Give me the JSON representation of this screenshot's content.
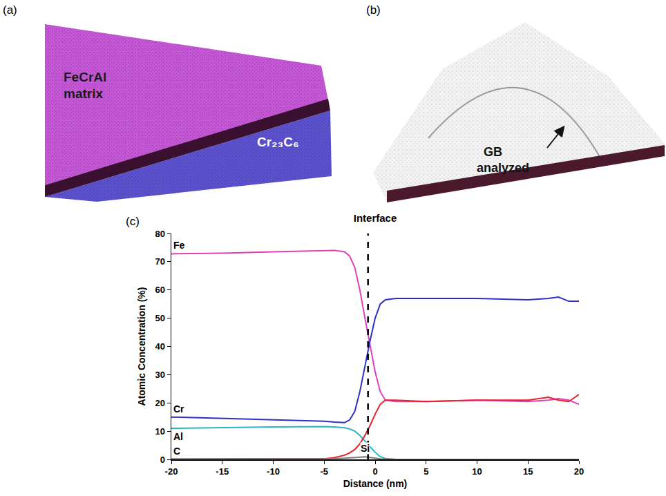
{
  "panel_a": {
    "label": "(a)",
    "matrix_label": [
      "FeCrAl",
      "matrix"
    ],
    "carbide_label": "Cr₂₃C₆"
  },
  "panel_b": {
    "label": "(b)",
    "gb_label": [
      "GB",
      "analyzed"
    ]
  },
  "chart_data": {
    "type": "line",
    "panel_label": "(c)",
    "title": "Interface",
    "x_label": "Distance (nm)",
    "y_label": "Atomic Concentration (%)",
    "x": [
      -20,
      -15,
      -10,
      -5,
      -4,
      -3,
      -2.5,
      -2,
      -1.5,
      -1,
      -0.5,
      0,
      0.5,
      1,
      2,
      5,
      10,
      15,
      17,
      18,
      19,
      20
    ],
    "series": [
      {
        "name": "Fe",
        "color": "#e040b8",
        "values": [
          72.8,
          73,
          73.5,
          74,
          74,
          73.5,
          72,
          68,
          60,
          50,
          40,
          31,
          24,
          21,
          20.5,
          20.5,
          21,
          20.5,
          21,
          21.5,
          21,
          19.5
        ]
      },
      {
        "name": "Cr",
        "color": "#2f2fc8",
        "values": [
          15,
          14.5,
          14,
          13.5,
          13.2,
          13,
          14,
          17,
          24,
          33,
          42,
          50,
          55,
          56.5,
          57,
          57,
          57,
          56.5,
          57,
          57.5,
          56,
          56
        ]
      },
      {
        "name": "Al",
        "color": "#2ab4c8",
        "values": [
          11,
          11.3,
          11.5,
          11.6,
          11.5,
          11.2,
          10.8,
          10,
          8.5,
          6.5,
          4.5,
          2.5,
          1,
          0.3,
          0,
          0,
          0,
          0,
          0,
          0,
          0,
          0
        ]
      },
      {
        "name": "C",
        "color": "#e8202a",
        "values": [
          0,
          0,
          0,
          0.2,
          0.6,
          1.5,
          2.3,
          3.5,
          5.5,
          8.5,
          12,
          16,
          19.5,
          21,
          21,
          20.5,
          21,
          21,
          22,
          21,
          20.5,
          23
        ]
      },
      {
        "name": "Si",
        "color": "#7a7a7a",
        "values": [
          0.2,
          0.2,
          0.2,
          0.2,
          0.3,
          0.4,
          0.5,
          0.6,
          0.8,
          0.9,
          0.7,
          0.4,
          0.2,
          0.1,
          0,
          0,
          0,
          0,
          0,
          0,
          0,
          0
        ]
      }
    ],
    "interface": {
      "x": -0.7,
      "line_style": "dash"
    },
    "xlim": [
      -20,
      20
    ],
    "xticks": [
      -20,
      -15,
      -10,
      -5,
      0,
      5,
      10,
      15,
      20
    ],
    "ylim": [
      0,
      80
    ],
    "yticks": [
      0,
      10,
      20,
      30,
      40,
      50,
      60,
      70,
      80
    ],
    "grid": false
  }
}
